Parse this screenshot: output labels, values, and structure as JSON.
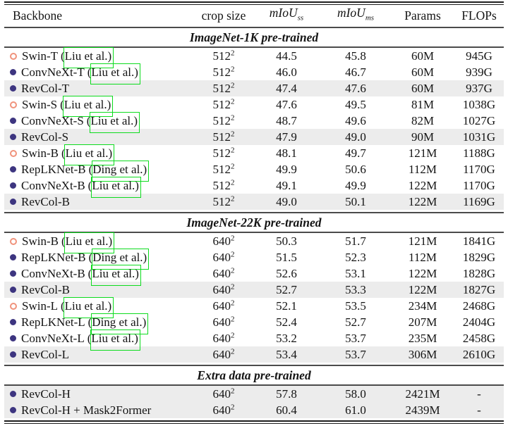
{
  "colors": {
    "text": "#141414",
    "open_bullet": "#f0937c",
    "filled_bullet": "#3d3580",
    "link_box": "#0ddc1e",
    "row_shade": "#ececec",
    "rule": "#4b4b4b"
  },
  "header": {
    "backbone": "Backbone",
    "crop_size": "crop size",
    "miou_label": "mIoU",
    "miou_ss_sub": "ss",
    "miou_ms_sub": "ms",
    "params": "Params",
    "flops": "FLOPs"
  },
  "sections": [
    {
      "title": "ImageNet-1K pre-trained",
      "rows": [
        {
          "bullet": "open",
          "name": "Swin-T",
          "cite": "(Liu et al.)",
          "crop": "512",
          "crop_exp": "2",
          "miou_ss": "44.5",
          "miou_ms": "45.8",
          "params": "60M",
          "flops": "945G",
          "shaded": false
        },
        {
          "bullet": "filled",
          "name": "ConvNeXt-T",
          "cite": "(Liu et al.)",
          "crop": "512",
          "crop_exp": "2",
          "miou_ss": "46.0",
          "miou_ms": "46.7",
          "params": "60M",
          "flops": "939G",
          "shaded": false
        },
        {
          "bullet": "filled",
          "name": "RevCol-T",
          "cite": "",
          "crop": "512",
          "crop_exp": "2",
          "miou_ss": "47.4",
          "miou_ms": "47.6",
          "params": "60M",
          "flops": "937G",
          "shaded": true
        },
        {
          "bullet": "open",
          "name": "Swin-S",
          "cite": "(Liu et al.)",
          "crop": "512",
          "crop_exp": "2",
          "miou_ss": "47.6",
          "miou_ms": "49.5",
          "params": "81M",
          "flops": "1038G",
          "shaded": false
        },
        {
          "bullet": "filled",
          "name": "ConvNeXt-S",
          "cite": "(Liu et al.)",
          "crop": "512",
          "crop_exp": "2",
          "miou_ss": "48.7",
          "miou_ms": "49.6",
          "params": "82M",
          "flops": "1027G",
          "shaded": false
        },
        {
          "bullet": "filled",
          "name": "RevCol-S",
          "cite": "",
          "crop": "512",
          "crop_exp": "2",
          "miou_ss": "47.9",
          "miou_ms": "49.0",
          "params": "90M",
          "flops": "1031G",
          "shaded": true
        },
        {
          "bullet": "open",
          "name": "Swin-B",
          "cite": "(Liu et al.)",
          "crop": "512",
          "crop_exp": "2",
          "miou_ss": "48.1",
          "miou_ms": "49.7",
          "params": "121M",
          "flops": "1188G",
          "shaded": false
        },
        {
          "bullet": "filled",
          "name": "RepLKNet-B",
          "cite": "(Ding et al.)",
          "crop": "512",
          "crop_exp": "2",
          "miou_ss": "49.9",
          "miou_ms": "50.6",
          "params": "112M",
          "flops": "1170G",
          "shaded": false
        },
        {
          "bullet": "filled",
          "name": "ConvNeXt-B",
          "cite": "(Liu et al.)",
          "crop": "512",
          "crop_exp": "2",
          "miou_ss": "49.1",
          "miou_ms": "49.9",
          "params": "122M",
          "flops": "1170G",
          "shaded": false
        },
        {
          "bullet": "filled",
          "name": "RevCol-B",
          "cite": "",
          "crop": "512",
          "crop_exp": "2",
          "miou_ss": "49.0",
          "miou_ms": "50.1",
          "params": "122M",
          "flops": "1169G",
          "shaded": true
        }
      ]
    },
    {
      "title": "ImageNet-22K pre-trained",
      "rows": [
        {
          "bullet": "open",
          "name": "Swin-B",
          "cite": "(Liu et al.)",
          "crop": "640",
          "crop_exp": "2",
          "miou_ss": "50.3",
          "miou_ms": "51.7",
          "params": "121M",
          "flops": "1841G",
          "shaded": false
        },
        {
          "bullet": "filled",
          "name": "RepLKNet-B",
          "cite": "(Ding et al.)",
          "crop": "640",
          "crop_exp": "2",
          "miou_ss": "51.5",
          "miou_ms": "52.3",
          "params": "112M",
          "flops": "1829G",
          "shaded": false
        },
        {
          "bullet": "filled",
          "name": "ConvNeXt-B",
          "cite": "(Liu et al.)",
          "crop": "640",
          "crop_exp": "2",
          "miou_ss": "52.6",
          "miou_ms": "53.1",
          "params": "122M",
          "flops": "1828G",
          "shaded": false
        },
        {
          "bullet": "filled",
          "name": "RevCol-B",
          "cite": "",
          "crop": "640",
          "crop_exp": "2",
          "miou_ss": "52.7",
          "miou_ms": "53.3",
          "params": "122M",
          "flops": "1827G",
          "shaded": true
        },
        {
          "bullet": "open",
          "name": "Swin-L",
          "cite": "(Liu et al.)",
          "crop": "640",
          "crop_exp": "2",
          "miou_ss": "52.1",
          "miou_ms": "53.5",
          "params": "234M",
          "flops": "2468G",
          "shaded": false
        },
        {
          "bullet": "filled",
          "name": "RepLKNet-L",
          "cite": "(Ding et al.)",
          "crop": "640",
          "crop_exp": "2",
          "miou_ss": "52.4",
          "miou_ms": "52.7",
          "params": "207M",
          "flops": "2404G",
          "shaded": false
        },
        {
          "bullet": "filled",
          "name": "ConvNeXt-L",
          "cite": "(Liu et al.)",
          "crop": "640",
          "crop_exp": "2",
          "miou_ss": "53.2",
          "miou_ms": "53.7",
          "params": "235M",
          "flops": "2458G",
          "shaded": false
        },
        {
          "bullet": "filled",
          "name": "RevCol-L",
          "cite": "",
          "crop": "640",
          "crop_exp": "2",
          "miou_ss": "53.4",
          "miou_ms": "53.7",
          "params": "306M",
          "flops": "2610G",
          "shaded": true
        }
      ]
    },
    {
      "title": "Extra data pre-trained",
      "rows": [
        {
          "bullet": "filled",
          "name": "RevCol-H",
          "cite": "",
          "crop": "640",
          "crop_exp": "2",
          "miou_ss": "57.8",
          "miou_ms": "58.0",
          "params": "2421M",
          "flops": "-",
          "shaded": true
        },
        {
          "bullet": "filled",
          "name": "RevCol-H + Mask2Former",
          "cite": "",
          "crop": "640",
          "crop_exp": "2",
          "miou_ss": "60.4",
          "miou_ms": "61.0",
          "params": "2439M",
          "flops": "-",
          "shaded": true
        }
      ]
    }
  ]
}
